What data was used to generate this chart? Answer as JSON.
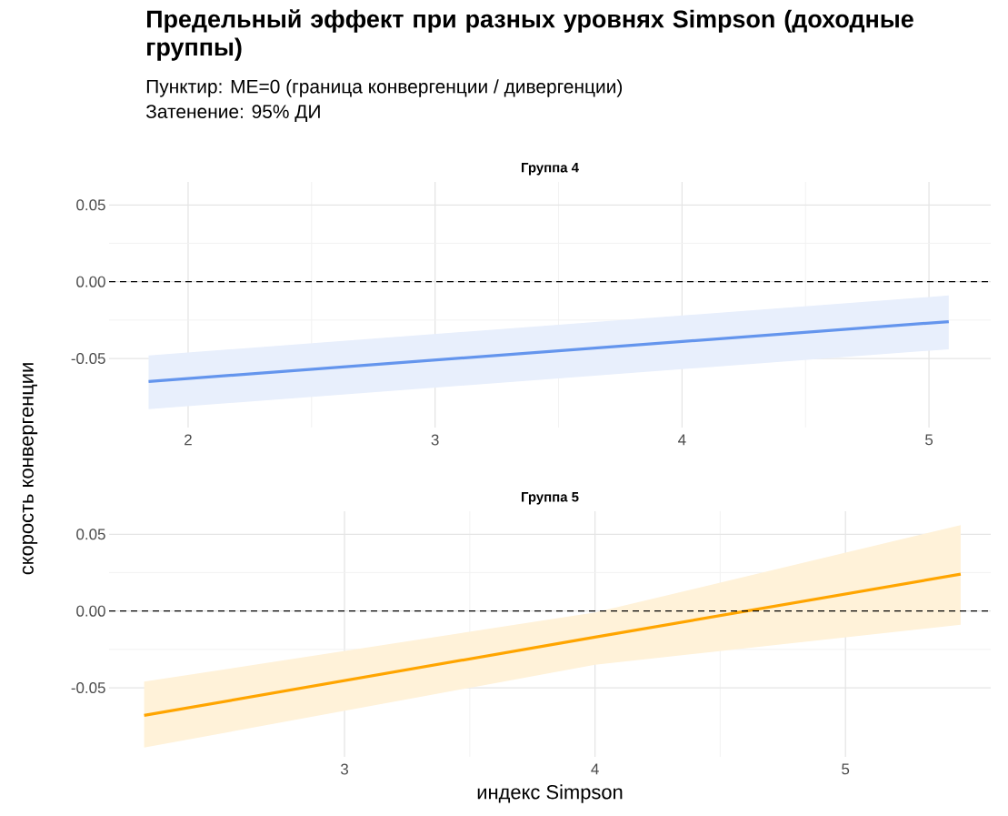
{
  "chart_data": [
    {
      "type": "line",
      "title": "Предельный эффект при разных уровнях Simpson (доходные группы)",
      "subtitle": "Пунктир: ME=0 (граница конвергенции / дивергенции)",
      "annotations": [
        "Затенение: 95% ДИ"
      ],
      "ylabel": "скорость конвергенции",
      "series": [
        {
          "name": "Группа 4",
          "color": "#6495ed",
          "x": [
            1.84,
            5.08
          ],
          "values": [
            -0.065,
            -0.026
          ],
          "lower": [
            -0.083,
            -0.044
          ],
          "upper": [
            -0.048,
            -0.009
          ]
        }
      ],
      "xlim": [
        1.68,
        5.25
      ],
      "xticks": [
        2,
        3,
        4,
        5
      ],
      "ylim": [
        -0.095,
        0.065
      ],
      "yticks": [
        {
          "value": -0.05,
          "label": "-0.05"
        },
        {
          "value": 0,
          "label": "0.00"
        },
        {
          "value": 0.05,
          "label": "0.05"
        }
      ],
      "ref_lines": [
        {
          "axis": "y",
          "value": 0,
          "color": "#000000",
          "line_style": "dashed"
        }
      ],
      "grid": true
    },
    {
      "type": "line",
      "xlabel": "индекс Simpson",
      "series": [
        {
          "name": "Группа 5",
          "color": "#ffa500",
          "x": [
            2.2,
            4.0,
            5.46
          ],
          "values": [
            -0.068,
            -0.017,
            0.024
          ],
          "lower": [
            -0.089,
            -0.035,
            -0.009
          ],
          "upper": [
            -0.046,
            -0.001,
            0.056
          ]
        }
      ],
      "xlim": [
        2.06,
        5.58
      ],
      "xticks": [
        3,
        4,
        5
      ],
      "ylim": [
        -0.095,
        0.065
      ],
      "yticks": [
        {
          "value": -0.05,
          "label": "-0.05"
        },
        {
          "value": 0,
          "label": "0.00"
        },
        {
          "value": 0.05,
          "label": "0.05"
        }
      ],
      "ref_lines": [
        {
          "axis": "y",
          "value": 0,
          "color": "#000000",
          "line_style": "dashed"
        }
      ],
      "grid": true
    }
  ]
}
